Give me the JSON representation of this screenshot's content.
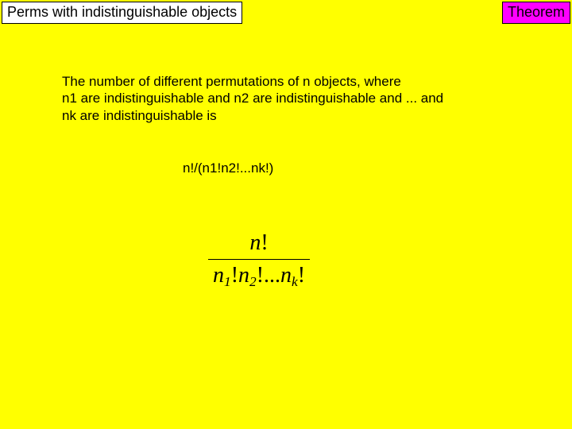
{
  "slide": {
    "background_color": "#ffff00",
    "title_box": {
      "text": "Perms with indistinguishable objects",
      "bg": "#ffffff",
      "border": "#000000",
      "fontsize_pt": 18
    },
    "theorem_box": {
      "text": "Theorem",
      "bg": "#ff00ff",
      "border": "#000000",
      "fontsize_pt": 18
    },
    "body": {
      "line1": "The number of different permutations of n objects, where",
      "line2": "n1 are indistinguishable and n2 are indistinguishable and ... and",
      "line3": "nk are indistinguishable is",
      "fontsize_pt": 17,
      "color": "#000000"
    },
    "formula_inline": {
      "text": "n!/(n1!n2!...nk!)",
      "fontsize_pt": 17
    },
    "formula_display": {
      "numerator": "n!",
      "denominator_parts": [
        "n",
        "1",
        "!",
        "n",
        "2",
        "!...",
        "n",
        "k",
        "!"
      ],
      "font_family": "Times New Roman",
      "font_style": "italic",
      "fontsize_pt": 28,
      "color": "#000000"
    }
  }
}
